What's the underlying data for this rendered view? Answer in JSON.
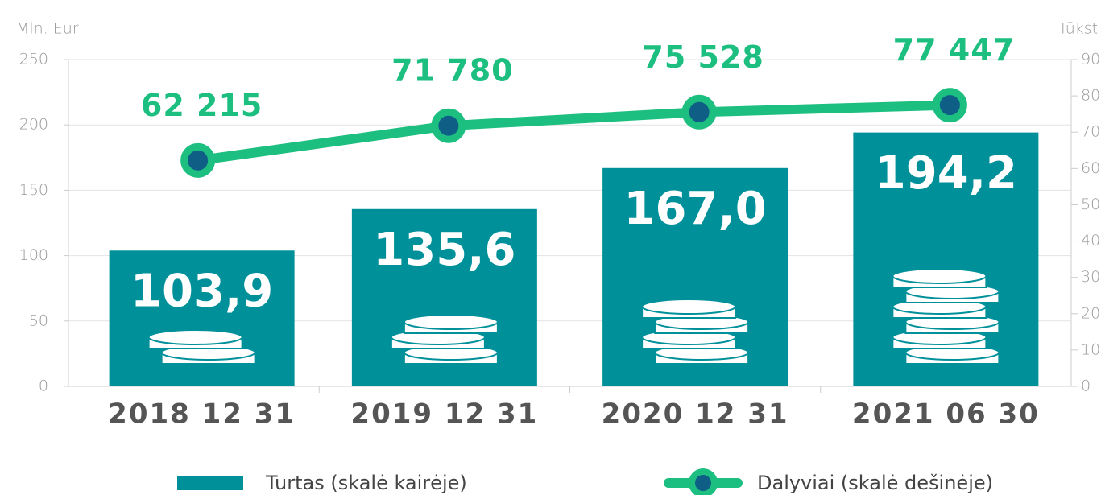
{
  "chart_data": {
    "type": "bar",
    "y_label": "Mln. Eur",
    "y2_label": "Tūkst",
    "categories": [
      "2018 12 31",
      "2019 12 31",
      "2020 12 31",
      "2021 06 30"
    ],
    "series": [
      {
        "name": "Turtas (skalė kairėje)",
        "type": "bar",
        "color": "#00909a",
        "values": [
          103.9,
          135.6,
          167.0,
          194.2
        ],
        "value_labels": [
          "103,9",
          "135,6",
          "167,0",
          "194,2"
        ]
      },
      {
        "name": "Dalyviai (skalė dešinėje)",
        "type": "line",
        "axis": "y2",
        "color": "#1dbf80",
        "marker_color": "#0e5e86",
        "values": [
          62.215,
          71.78,
          75.528,
          77.447
        ],
        "value_labels": [
          "62 215",
          "71 780",
          "75 528",
          "77 447"
        ]
      }
    ],
    "ylim": [
      0,
      250
    ],
    "yticks": [
      0,
      50,
      100,
      150,
      200,
      250
    ],
    "y2lim": [
      0,
      90
    ],
    "y2ticks": [
      0,
      10,
      20,
      30,
      40,
      50,
      60,
      70,
      80,
      90
    ],
    "grid": true
  }
}
